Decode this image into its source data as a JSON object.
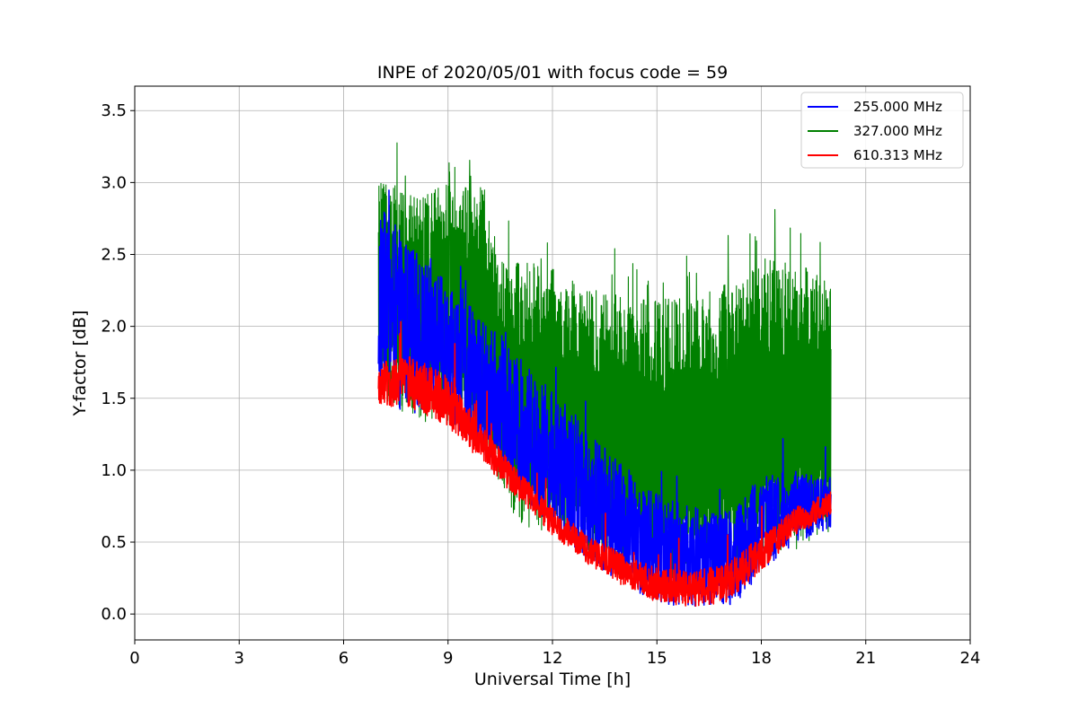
{
  "chart_data": {
    "type": "line",
    "title": "INPE of 2020/05/01 with focus code = 59",
    "xlabel": "Universal Time [h]",
    "ylabel": "Y-factor [dB]",
    "xlim": [
      0,
      24
    ],
    "ylim": [
      -0.18,
      3.67
    ],
    "xticks": [
      0,
      3,
      6,
      9,
      12,
      15,
      18,
      21,
      24
    ],
    "xtick_labels": [
      "0",
      "3",
      "6",
      "9",
      "12",
      "15",
      "18",
      "21",
      "24"
    ],
    "yticks": [
      0.0,
      0.5,
      1.0,
      1.5,
      2.0,
      2.5,
      3.0,
      3.5
    ],
    "ytick_labels": [
      "0.0",
      "0.5",
      "1.0",
      "1.5",
      "2.0",
      "2.5",
      "3.0",
      "3.5"
    ],
    "grid": true,
    "legend_position": "top-right",
    "series": [
      {
        "name": "255.000 MHz",
        "color": "#0000ff",
        "lower": [
          [
            7.0,
            1.45
          ],
          [
            8.0,
            1.4
          ],
          [
            9.0,
            1.35
          ],
          [
            10.0,
            1.1
          ],
          [
            11.0,
            0.85
          ],
          [
            12.0,
            0.6
          ],
          [
            13.0,
            0.38
          ],
          [
            14.0,
            0.2
          ],
          [
            15.0,
            0.08
          ],
          [
            16.0,
            0.04
          ],
          [
            17.0,
            0.05
          ],
          [
            17.5,
            0.12
          ],
          [
            18.0,
            0.3
          ],
          [
            19.0,
            0.5
          ],
          [
            20.0,
            0.6
          ]
        ],
        "upper": [
          [
            7.0,
            2.85
          ],
          [
            8.0,
            2.55
          ],
          [
            9.0,
            2.3
          ],
          [
            10.0,
            2.05
          ],
          [
            11.0,
            1.8
          ],
          [
            12.0,
            1.55
          ],
          [
            13.0,
            1.3
          ],
          [
            14.0,
            1.05
          ],
          [
            15.0,
            0.85
          ],
          [
            16.0,
            0.75
          ],
          [
            17.0,
            0.72
          ],
          [
            18.0,
            0.95
          ],
          [
            19.0,
            1.0
          ],
          [
            20.0,
            0.95
          ]
        ]
      },
      {
        "name": "327.000 MHz",
        "color": "#008000",
        "lower": [
          [
            7.0,
            1.5
          ],
          [
            8.0,
            1.35
          ],
          [
            9.0,
            1.3
          ],
          [
            10.0,
            1.15
          ],
          [
            11.0,
            0.6
          ],
          [
            12.0,
            0.55
          ],
          [
            13.0,
            0.4
          ],
          [
            14.0,
            0.25
          ],
          [
            15.0,
            0.2
          ],
          [
            16.0,
            0.2
          ],
          [
            17.0,
            0.25
          ],
          [
            18.0,
            0.35
          ],
          [
            19.0,
            0.45
          ],
          [
            20.0,
            0.55
          ]
        ],
        "upper": [
          [
            7.0,
            3.1
          ],
          [
            8.0,
            2.9
          ],
          [
            9.0,
            3.0
          ],
          [
            10.0,
            3.0
          ],
          [
            10.5,
            2.5
          ],
          [
            12.0,
            2.4
          ],
          [
            13.0,
            2.3
          ],
          [
            14.0,
            2.2
          ],
          [
            15.0,
            2.2
          ],
          [
            16.0,
            2.2
          ],
          [
            17.0,
            2.3
          ],
          [
            18.0,
            2.5
          ],
          [
            19.0,
            2.45
          ],
          [
            20.0,
            2.3
          ]
        ]
      },
      {
        "name": "610.313 MHz",
        "color": "#ff0000",
        "lower": [
          [
            7.0,
            1.45
          ],
          [
            8.0,
            1.42
          ],
          [
            9.0,
            1.3
          ],
          [
            10.0,
            1.05
          ],
          [
            11.0,
            0.8
          ],
          [
            12.0,
            0.55
          ],
          [
            13.0,
            0.35
          ],
          [
            14.0,
            0.2
          ],
          [
            15.0,
            0.08
          ],
          [
            16.0,
            0.05
          ],
          [
            17.0,
            0.08
          ],
          [
            18.0,
            0.3
          ],
          [
            19.0,
            0.55
          ],
          [
            20.0,
            0.68
          ]
        ],
        "upper": [
          [
            7.0,
            1.75
          ],
          [
            8.0,
            1.8
          ],
          [
            9.0,
            1.65
          ],
          [
            10.0,
            1.3
          ],
          [
            11.0,
            1.0
          ],
          [
            12.0,
            0.75
          ],
          [
            13.0,
            0.55
          ],
          [
            14.0,
            0.42
          ],
          [
            15.0,
            0.32
          ],
          [
            16.0,
            0.3
          ],
          [
            17.0,
            0.35
          ],
          [
            18.0,
            0.55
          ],
          [
            19.0,
            0.75
          ],
          [
            20.0,
            0.85
          ]
        ]
      }
    ]
  }
}
